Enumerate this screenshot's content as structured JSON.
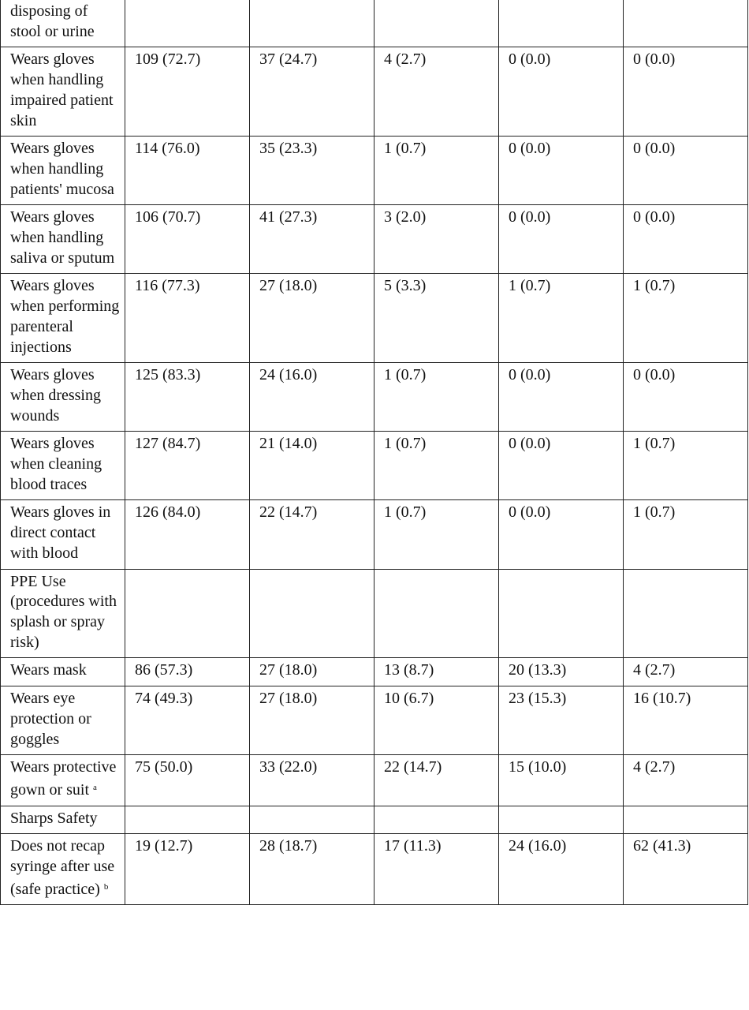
{
  "table": {
    "rows": [
      {
        "label": "disposing of stool or urine"
      },
      {
        "label": "Wears gloves when handling impaired patient skin",
        "values": [
          "109 (72.7)",
          "37 (24.7)",
          "4 (2.7)",
          "0 (0.0)",
          "0 (0.0)"
        ]
      },
      {
        "label": "Wears gloves when handling patients' mucosa",
        "values": [
          "114 (76.0)",
          "35 (23.3)",
          "1 (0.7)",
          "0 (0.0)",
          "0 (0.0)"
        ]
      },
      {
        "label": "Wears gloves when handling saliva or sputum",
        "values": [
          "106 (70.7)",
          "41 (27.3)",
          "3 (2.0)",
          "0 (0.0)",
          "0 (0.0)"
        ]
      },
      {
        "label": "Wears gloves when performing parenteral injections",
        "values": [
          "116 (77.3)",
          "27 (18.0)",
          "5 (3.3)",
          "1 (0.7)",
          "1 (0.7)"
        ]
      },
      {
        "label": "Wears gloves when dressing wounds",
        "values": [
          "125 (83.3)",
          "24 (16.0)",
          "1 (0.7)",
          "0 (0.0)",
          "0 (0.0)"
        ]
      },
      {
        "label": "Wears gloves when cleaning blood traces",
        "values": [
          "127 (84.7)",
          "21 (14.0)",
          "1 (0.7)",
          "0 (0.0)",
          "1 (0.7)"
        ]
      },
      {
        "label": "Wears gloves in direct contact with blood",
        "values": [
          "126 (84.0)",
          "22 (14.7)",
          "1 (0.7)",
          "0 (0.0)",
          "1 (0.7)"
        ]
      },
      {
        "label": "PPE Use (procedures with splash or spray risk)"
      },
      {
        "label": "Wears mask",
        "values": [
          "86 (57.3)",
          "27 (18.0)",
          "13 (8.7)",
          "20 (13.3)",
          "4 (2.7)"
        ]
      },
      {
        "label": "Wears eye protection or goggles",
        "values": [
          "74 (49.3)",
          "27 (18.0)",
          "10 (6.7)",
          "23 (15.3)",
          "16 (10.7)"
        ]
      },
      {
        "label": "Wears protective gown or suit",
        "note": "a",
        "values": [
          "75 (50.0)",
          "33 (22.0)",
          "22 (14.7)",
          "15 (10.0)",
          "4 (2.7)"
        ]
      },
      {
        "label": "Sharps Safety"
      },
      {
        "label": "Does not recap syringe after use (safe practice)",
        "note": "b",
        "values": [
          "19 (12.7)",
          "28 (18.7)",
          "17 (11.3)",
          "24 (16.0)",
          "62 (41.3)"
        ]
      }
    ]
  }
}
